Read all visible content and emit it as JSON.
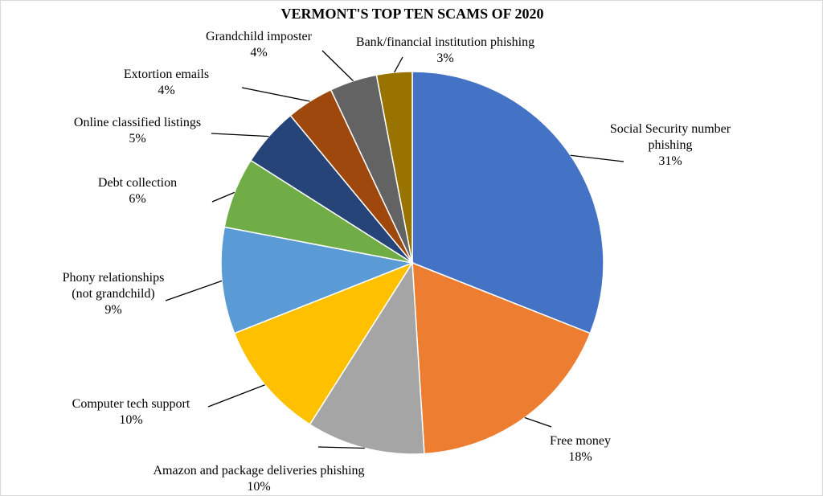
{
  "chart_data": {
    "type": "pie",
    "title": "VERMONT'S TOP TEN SCAMS OF 2020",
    "categories": [
      "Social Security number phishing",
      "Free money",
      "Amazon and package deliveries phishing",
      "Computer tech support",
      "Phony relationships (not grandchild)",
      "Debt collection",
      "Online classified listings",
      "Extortion emails",
      "Grandchild imposter",
      "Bank/financial institution phishing"
    ],
    "values": [
      31,
      18,
      10,
      10,
      9,
      6,
      5,
      4,
      4,
      3
    ],
    "value_labels": [
      "31%",
      "18%",
      "10%",
      "10%",
      "9%",
      "6%",
      "5%",
      "4%",
      "4%",
      "3%"
    ],
    "colors": [
      "#4472c4",
      "#ed7d31",
      "#a5a5a5",
      "#ffc000",
      "#5b9bd5",
      "#70ad47",
      "#264478",
      "#9e480e",
      "#636363",
      "#997300"
    ]
  }
}
